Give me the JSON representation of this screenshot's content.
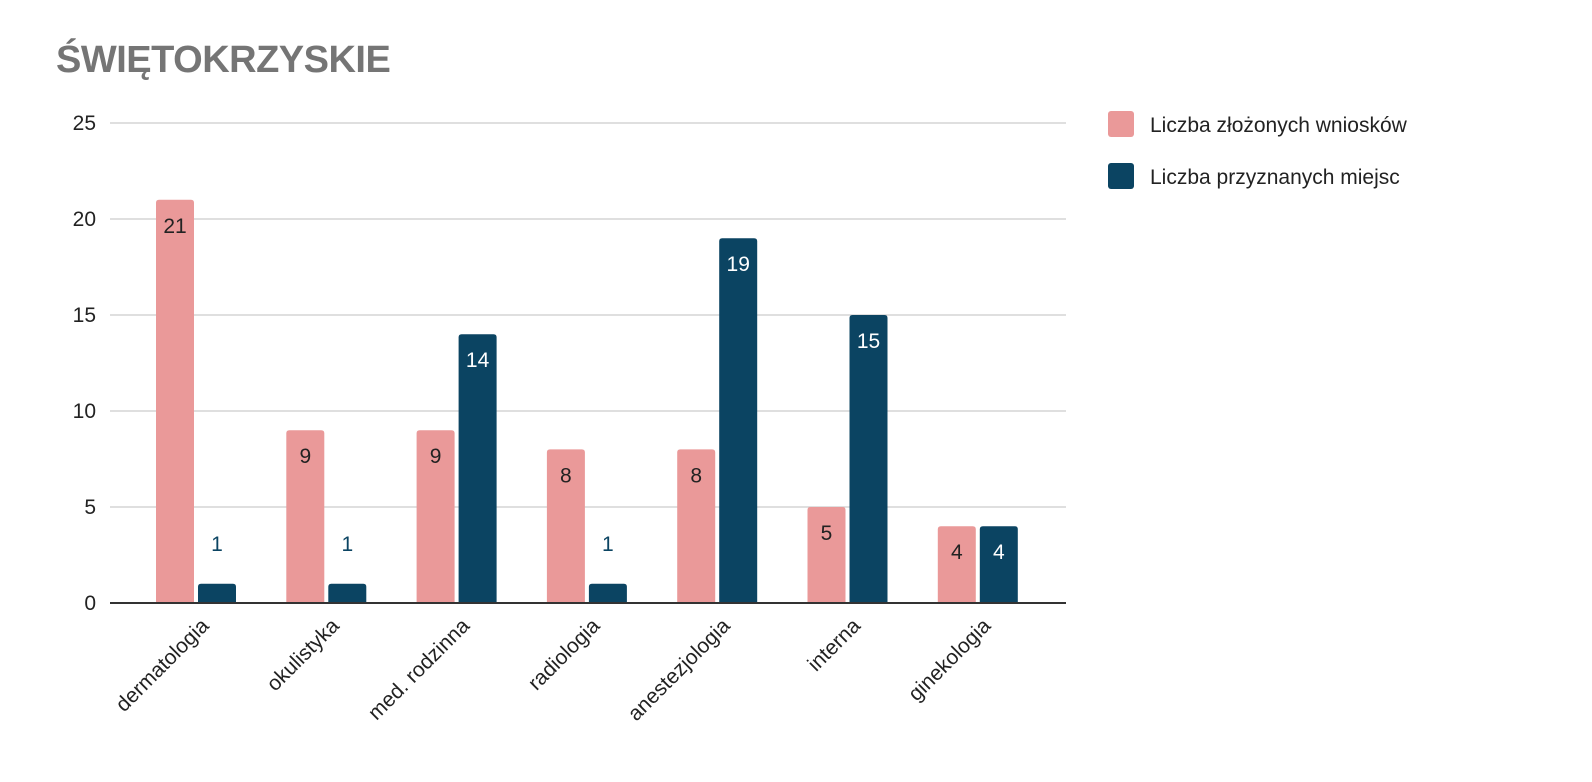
{
  "chart_data": {
    "type": "bar",
    "title": "ŚWIĘTOKRZYSKIE",
    "xlabel": "",
    "ylabel": "",
    "categories": [
      "dermatologia",
      "okulistyka",
      "med. rodzinna",
      "radiologia",
      "anestezjologia",
      "interna",
      "ginekologia"
    ],
    "series": [
      {
        "name": "Liczba złożonych wniosków",
        "color": "#ea9999",
        "label_color": "#222222",
        "values": [
          21,
          9,
          9,
          8,
          8,
          5,
          4
        ]
      },
      {
        "name": "Liczba przyznanych miejsc",
        "color": "#0b4462",
        "label_color": "#ffffff",
        "label_color_outside": "#0b4462",
        "values": [
          1,
          1,
          14,
          1,
          19,
          15,
          4
        ]
      }
    ],
    "ylim": [
      0,
      25
    ],
    "yticks": [
      0,
      5,
      10,
      15,
      20,
      25
    ],
    "grid": true,
    "legend_position": "right",
    "axis_color": "#333333",
    "grid_color": "#cccccc"
  }
}
